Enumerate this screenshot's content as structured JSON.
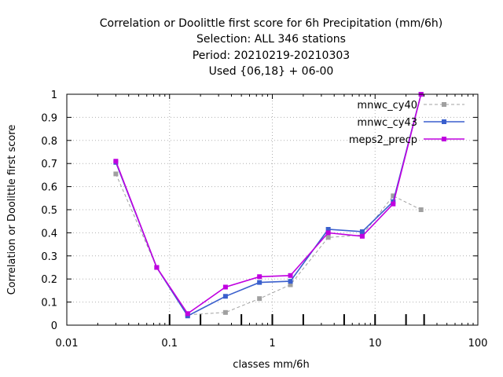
{
  "chart_data": {
    "type": "line",
    "title_lines": [
      "Correlation or Doolittle first score  for 6h Precipitation (mm/6h)",
      "Selection: ALL    346 stations",
      "Period: 20210219-20210303",
      "Used {06,18} + 06-00"
    ],
    "xlabel": "classes mm/6h",
    "ylabel": "Correlation or Doolittle first score",
    "x_scale": "log",
    "xlim": [
      0.01,
      100
    ],
    "ylim": [
      0,
      1
    ],
    "x_ticks": [
      0.01,
      0.1,
      1,
      10,
      100
    ],
    "x_tick_labels": [
      "0.01",
      "0.1",
      "1",
      "10",
      "100"
    ],
    "y_ticks": [
      0,
      0.1,
      0.2,
      0.3,
      0.4,
      0.5,
      0.6,
      0.7,
      0.8,
      0.9,
      1
    ],
    "y_tick_labels": [
      "0",
      "0.1",
      "0.2",
      "0.3",
      "0.4",
      "0.5",
      "0.6",
      "0.7",
      "0.8",
      "0.9",
      "1"
    ],
    "grid": true,
    "legend_position": "top-right",
    "class_marks": [
      0.1,
      0.2,
      0.5,
      1,
      2,
      5,
      10,
      20,
      30
    ],
    "series": [
      {
        "name": "mnwc_cy40",
        "color": "#a0a0a0",
        "dashed": true,
        "x": [
          0.03,
          0.075,
          0.15,
          0.35,
          0.75,
          1.5,
          3.5,
          7.5,
          15,
          28
        ],
        "y": [
          0.655,
          0.25,
          0.045,
          0.055,
          0.115,
          0.175,
          0.38,
          0.39,
          0.56,
          0.5
        ]
      },
      {
        "name": "mnwc_cy43",
        "color": "#3a5fcd",
        "dashed": false,
        "x": [
          0.03,
          0.075,
          0.15,
          0.35,
          0.75,
          1.5,
          3.5,
          7.5,
          15,
          28
        ],
        "y": [
          0.705,
          0.25,
          0.04,
          0.125,
          0.185,
          0.19,
          0.415,
          0.405,
          0.535,
          1.0
        ]
      },
      {
        "name": "meps2_precp",
        "color": "#c000e0",
        "dashed": false,
        "x": [
          0.03,
          0.075,
          0.15,
          0.35,
          0.75,
          1.5,
          3.5,
          7.5,
          15,
          28
        ],
        "y": [
          0.71,
          0.25,
          0.05,
          0.165,
          0.21,
          0.215,
          0.4,
          0.385,
          0.525,
          1.0
        ]
      }
    ]
  }
}
